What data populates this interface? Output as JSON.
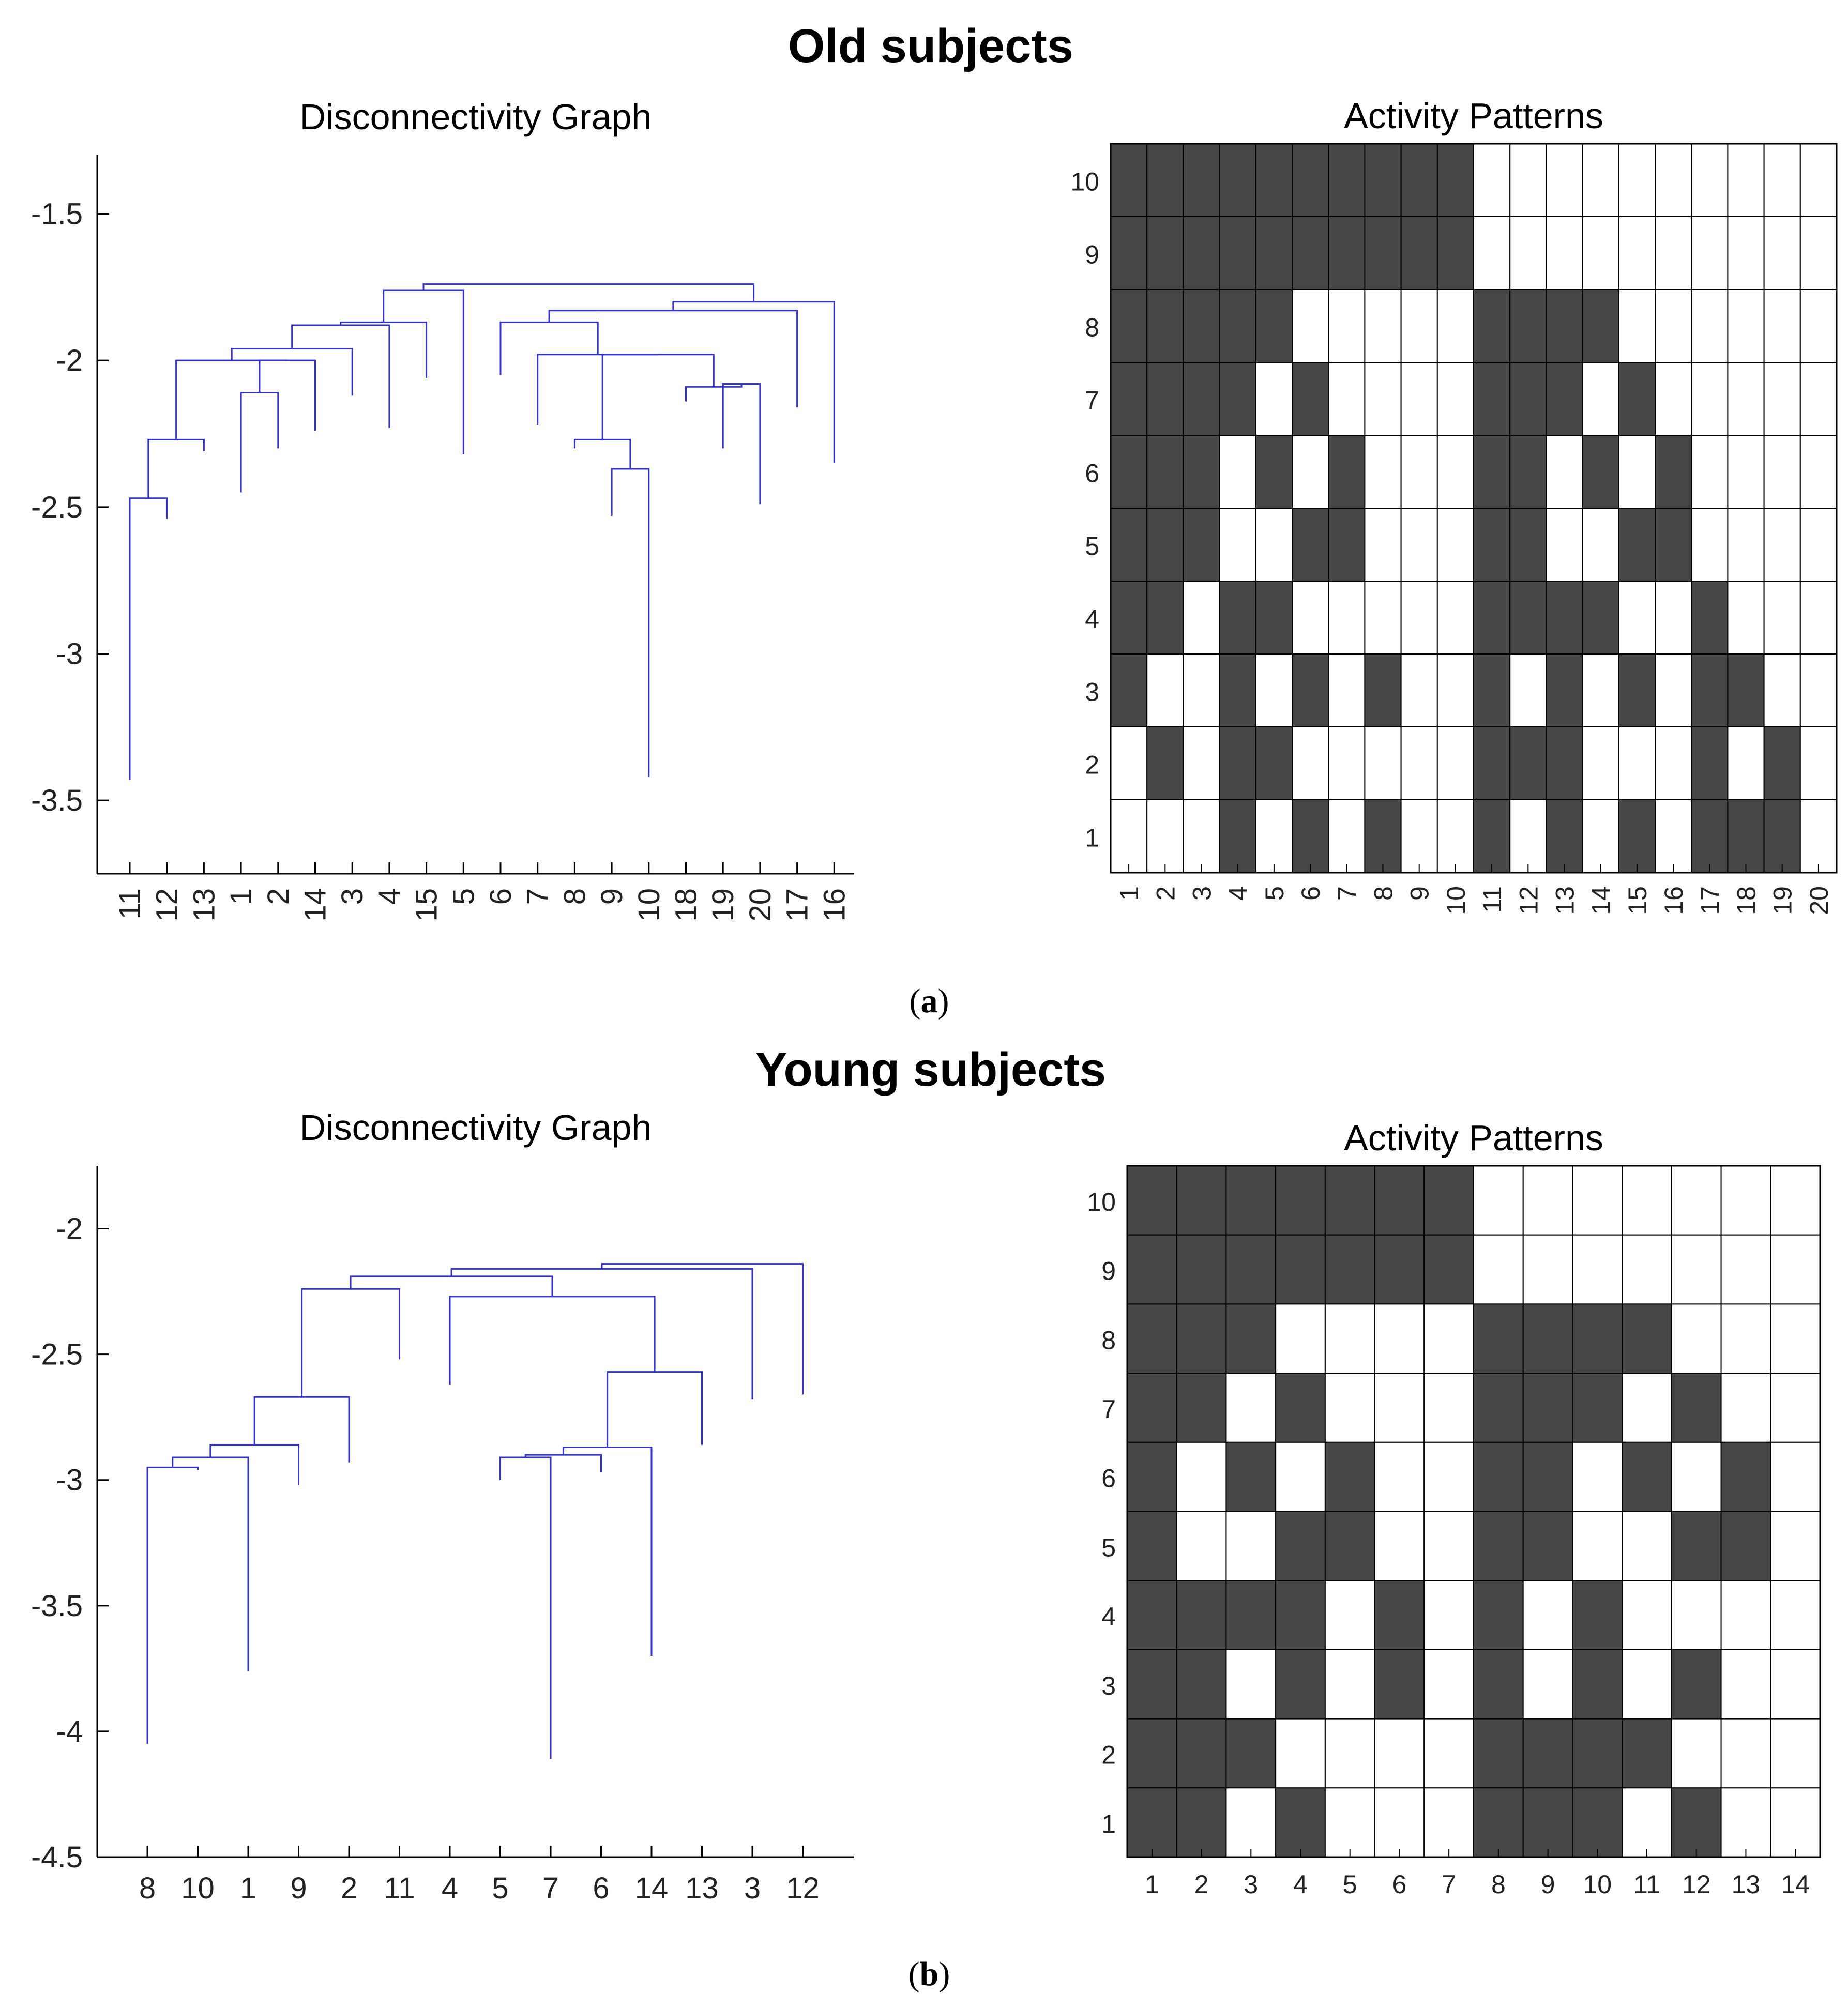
{
  "figure": {
    "panel_a": {
      "title": "Old subjects",
      "label_open": "(",
      "label_letter": "a",
      "label_close": ")"
    },
    "panel_b": {
      "title": "Young subjects",
      "label_open": "(",
      "label_letter": "b",
      "label_close": ")"
    }
  },
  "colors": {
    "dendrogram_line": "#3333cc",
    "active_cell": "#474747",
    "inactive_cell": "#ffffff",
    "grid": "#000000",
    "axis": "#000000"
  },
  "chart_data": [
    {
      "id": "old-dendrogram",
      "type": "dendrogram",
      "title": "Disconnectivity Graph",
      "xlabel": "",
      "ylabel": "",
      "ylim": [
        -3.75,
        -1.3
      ],
      "yticks": [
        -1.5,
        -2,
        -2.5,
        -3,
        -3.5
      ],
      "ytick_labels": [
        "-1.5",
        "-2",
        "-2.5",
        "-3",
        "-3.5"
      ],
      "leaf_order": [
        "11",
        "12",
        "13",
        "1",
        "2",
        "14",
        "3",
        "4",
        "15",
        "5",
        "6",
        "7",
        "8",
        "9",
        "10",
        "18",
        "19",
        "20",
        "17",
        "16"
      ],
      "leaf_minima": [
        -3.43,
        -2.54,
        -2.31,
        -2.45,
        -2.3,
        -2.24,
        -2.12,
        -2.23,
        -2.06,
        -2.32,
        -2.05,
        -2.22,
        -2.3,
        -2.53,
        -3.42,
        -2.14,
        -2.3,
        -2.49,
        -2.16,
        -2.35
      ],
      "merges": [
        {
          "a": [
            0
          ],
          "b": [
            1
          ],
          "y": -2.47
        },
        {
          "a": [
            0,
            1
          ],
          "b": [
            2
          ],
          "y": -2.27
        },
        {
          "a": [
            3
          ],
          "b": [
            4
          ],
          "y": -2.11
        },
        {
          "a": [
            3,
            4
          ],
          "b": [
            5
          ],
          "y": -2.0
        },
        {
          "a": [
            0,
            1,
            2
          ],
          "b": [
            3,
            4,
            5
          ],
          "y": -2.0
        },
        {
          "a": [
            0,
            1,
            2,
            3,
            4,
            5
          ],
          "b": [
            6
          ],
          "y": -1.96
        },
        {
          "a": [
            0,
            1,
            2,
            3,
            4,
            5,
            6
          ],
          "b": [
            7
          ],
          "y": -1.88
        },
        {
          "a": [
            0,
            1,
            2,
            3,
            4,
            5,
            6,
            7
          ],
          "b": [
            8
          ],
          "y": -1.87
        },
        {
          "a": [
            0,
            1,
            2,
            3,
            4,
            5,
            6,
            7,
            8
          ],
          "b": [
            9
          ],
          "y": -1.76
        },
        {
          "a": [
            13
          ],
          "b": [
            14
          ],
          "y": -2.37
        },
        {
          "a": [
            12
          ],
          "b": [
            13,
            14
          ],
          "y": -2.27
        },
        {
          "a": [
            16
          ],
          "b": [
            17
          ],
          "y": -2.08
        },
        {
          "a": [
            15
          ],
          "b": [
            16,
            17
          ],
          "y": -2.09
        },
        {
          "a": [
            12,
            13,
            14
          ],
          "b": [
            15,
            16,
            17
          ],
          "y": -1.98
        },
        {
          "a": [
            11
          ],
          "b": [
            12,
            13,
            14,
            15,
            16,
            17
          ],
          "y": -1.98
        },
        {
          "a": [
            10
          ],
          "b": [
            11,
            12,
            13,
            14,
            15,
            16,
            17
          ],
          "y": -1.87
        },
        {
          "a": [
            10,
            11,
            12,
            13,
            14,
            15,
            16,
            17
          ],
          "b": [
            18
          ],
          "y": -1.83
        },
        {
          "a": [
            10,
            11,
            12,
            13,
            14,
            15,
            16,
            17,
            18
          ],
          "b": [
            19
          ],
          "y": -1.8
        },
        {
          "a": [
            0,
            1,
            2,
            3,
            4,
            5,
            6,
            7,
            8,
            9
          ],
          "b": [
            10,
            11,
            12,
            13,
            14,
            15,
            16,
            17,
            18,
            19
          ],
          "y": -1.74
        }
      ]
    },
    {
      "id": "old-activity",
      "type": "heatmap",
      "title": "Activity Patterns",
      "xlabel": "",
      "ylabel": "",
      "x_labels": [
        "1",
        "2",
        "3",
        "4",
        "5",
        "6",
        "7",
        "8",
        "9",
        "10",
        "11",
        "12",
        "13",
        "14",
        "15",
        "16",
        "17",
        "18",
        "19",
        "20"
      ],
      "y_labels": [
        "10",
        "9",
        "8",
        "7",
        "6",
        "5",
        "4",
        "3",
        "2",
        "1"
      ],
      "rows": [
        [
          1,
          1,
          1,
          1,
          1,
          1,
          1,
          1,
          1,
          1,
          0,
          0,
          0,
          0,
          0,
          0,
          0,
          0,
          0,
          0
        ],
        [
          1,
          1,
          1,
          1,
          1,
          1,
          1,
          1,
          1,
          1,
          0,
          0,
          0,
          0,
          0,
          0,
          0,
          0,
          0,
          0
        ],
        [
          1,
          1,
          1,
          1,
          1,
          0,
          0,
          0,
          0,
          0,
          1,
          1,
          1,
          1,
          0,
          0,
          0,
          0,
          0,
          0
        ],
        [
          1,
          1,
          1,
          1,
          0,
          1,
          0,
          0,
          0,
          0,
          1,
          1,
          1,
          0,
          1,
          0,
          0,
          0,
          0,
          0
        ],
        [
          1,
          1,
          1,
          0,
          1,
          0,
          1,
          0,
          0,
          0,
          1,
          1,
          0,
          1,
          0,
          1,
          0,
          0,
          0,
          0
        ],
        [
          1,
          1,
          1,
          0,
          0,
          1,
          1,
          0,
          0,
          0,
          1,
          1,
          0,
          0,
          1,
          1,
          0,
          0,
          0,
          0
        ],
        [
          1,
          1,
          0,
          1,
          1,
          0,
          0,
          0,
          0,
          0,
          1,
          1,
          1,
          1,
          0,
          0,
          1,
          0,
          0,
          0
        ],
        [
          1,
          0,
          0,
          1,
          0,
          1,
          0,
          1,
          0,
          0,
          1,
          0,
          1,
          0,
          1,
          0,
          1,
          1,
          0,
          0
        ],
        [
          0,
          1,
          0,
          1,
          1,
          0,
          0,
          0,
          0,
          0,
          1,
          1,
          1,
          0,
          0,
          0,
          1,
          0,
          1,
          0
        ],
        [
          0,
          0,
          0,
          1,
          0,
          1,
          0,
          1,
          0,
          0,
          1,
          0,
          1,
          0,
          1,
          0,
          1,
          1,
          1,
          0
        ]
      ]
    },
    {
      "id": "young-dendrogram",
      "type": "dendrogram",
      "title": "Disconnectivity Graph",
      "xlabel": "",
      "ylabel": "",
      "ylim": [
        -4.5,
        -1.75
      ],
      "yticks": [
        -2,
        -2.5,
        -3,
        -3.5,
        -4,
        -4.5
      ],
      "ytick_labels": [
        "-2",
        "-2.5",
        "-3",
        "-3.5",
        "-4",
        "-4.5"
      ],
      "leaf_order": [
        "8",
        "10",
        "1",
        "9",
        "2",
        "11",
        "4",
        "5",
        "7",
        "6",
        "14",
        "13",
        "3",
        "12"
      ],
      "leaf_minima": [
        -4.05,
        -2.96,
        -3.76,
        -3.02,
        -2.93,
        -2.52,
        -2.62,
        -3.0,
        -4.11,
        -2.97,
        -3.7,
        -2.86,
        -2.68,
        -2.66
      ],
      "merges": [
        {
          "a": [
            0
          ],
          "b": [
            1
          ],
          "y": -2.95
        },
        {
          "a": [
            0,
            1
          ],
          "b": [
            2
          ],
          "y": -2.91
        },
        {
          "a": [
            0,
            1,
            2
          ],
          "b": [
            3
          ],
          "y": -2.86
        },
        {
          "a": [
            0,
            1,
            2,
            3
          ],
          "b": [
            4
          ],
          "y": -2.67
        },
        {
          "a": [
            0,
            1,
            2,
            3,
            4
          ],
          "b": [
            5
          ],
          "y": -2.24
        },
        {
          "a": [
            7
          ],
          "b": [
            8
          ],
          "y": -2.91
        },
        {
          "a": [
            7,
            8
          ],
          "b": [
            9
          ],
          "y": -2.9
        },
        {
          "a": [
            7,
            8,
            9
          ],
          "b": [
            10
          ],
          "y": -2.87
        },
        {
          "a": [
            7,
            8,
            9,
            10
          ],
          "b": [
            11
          ],
          "y": -2.57
        },
        {
          "a": [
            6
          ],
          "b": [
            7,
            8,
            9,
            10,
            11
          ],
          "y": -2.27
        },
        {
          "a": [
            0,
            1,
            2,
            3,
            4,
            5
          ],
          "b": [
            6,
            7,
            8,
            9,
            10,
            11
          ],
          "y": -2.19
        },
        {
          "a": [
            0,
            1,
            2,
            3,
            4,
            5,
            6,
            7,
            8,
            9,
            10,
            11
          ],
          "b": [
            12
          ],
          "y": -2.16
        },
        {
          "a": [
            0,
            1,
            2,
            3,
            4,
            5,
            6,
            7,
            8,
            9,
            10,
            11,
            12
          ],
          "b": [
            13
          ],
          "y": -2.14
        }
      ]
    },
    {
      "id": "young-activity",
      "type": "heatmap",
      "title": "Activity Patterns",
      "xlabel": "",
      "ylabel": "",
      "x_labels": [
        "1",
        "2",
        "3",
        "4",
        "5",
        "6",
        "7",
        "8",
        "9",
        "10",
        "11",
        "12",
        "13",
        "14"
      ],
      "y_labels": [
        "10",
        "9",
        "8",
        "7",
        "6",
        "5",
        "4",
        "3",
        "2",
        "1"
      ],
      "rows": [
        [
          1,
          1,
          1,
          1,
          1,
          1,
          1,
          0,
          0,
          0,
          0,
          0,
          0,
          0
        ],
        [
          1,
          1,
          1,
          1,
          1,
          1,
          1,
          0,
          0,
          0,
          0,
          0,
          0,
          0
        ],
        [
          1,
          1,
          1,
          0,
          0,
          0,
          0,
          1,
          1,
          1,
          1,
          0,
          0,
          0
        ],
        [
          1,
          1,
          0,
          1,
          0,
          0,
          0,
          1,
          1,
          1,
          0,
          1,
          0,
          0
        ],
        [
          1,
          0,
          1,
          0,
          1,
          0,
          0,
          1,
          1,
          0,
          1,
          0,
          1,
          0
        ],
        [
          1,
          0,
          0,
          1,
          1,
          0,
          0,
          1,
          1,
          0,
          0,
          1,
          1,
          0
        ],
        [
          1,
          1,
          1,
          1,
          0,
          1,
          0,
          1,
          0,
          1,
          0,
          0,
          0,
          0
        ],
        [
          1,
          1,
          0,
          1,
          0,
          1,
          0,
          1,
          0,
          1,
          0,
          1,
          0,
          0
        ],
        [
          1,
          1,
          1,
          0,
          0,
          0,
          0,
          1,
          1,
          1,
          1,
          0,
          0,
          0
        ],
        [
          1,
          1,
          0,
          1,
          0,
          0,
          0,
          1,
          1,
          1,
          0,
          1,
          0,
          0
        ]
      ]
    }
  ]
}
